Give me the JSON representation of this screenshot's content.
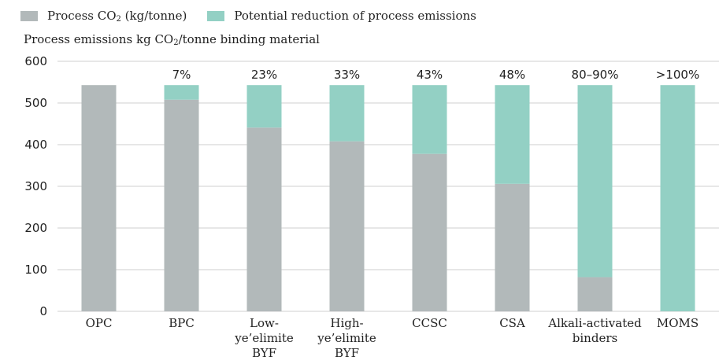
{
  "chart_data": {
    "type": "bar",
    "stacked": true,
    "ylabel": {
      "prefix": "Process emissions kg CO",
      "sub": "2",
      "suffix": "/tonne binding material"
    },
    "ylim": [
      0,
      600
    ],
    "yticks": [
      "0",
      "100",
      "200",
      "300",
      "400",
      "500",
      "600"
    ],
    "grid": true,
    "legend_position": "top-left",
    "categories": [
      [
        "OPC"
      ],
      [
        "BPC"
      ],
      [
        "Low-",
        "ye’elimite",
        "BYF"
      ],
      [
        "High-",
        "ye’elimite",
        "BYF"
      ],
      [
        "CCSC"
      ],
      [
        "CSA"
      ],
      [
        "Alkali-activated",
        "binders"
      ],
      [
        "MOMS"
      ]
    ],
    "series": [
      {
        "legend": {
          "prefix": "Process CO",
          "sub": "2",
          "suffix": " (kg/tonne)"
        },
        "color": "#b2b9ba",
        "values": [
          543,
          508,
          441,
          408,
          378,
          306,
          82,
          0
        ]
      },
      {
        "legend": {
          "prefix": "Potential reduction of process emissions",
          "sub": "",
          "suffix": ""
        },
        "color": "#93d0c4",
        "values": [
          0,
          35,
          102,
          135,
          165,
          237,
          461,
          543
        ]
      }
    ],
    "annotations": [
      "",
      "7%",
      "23%",
      "33%",
      "43%",
      "48%",
      "80–90%",
      ">100%"
    ]
  }
}
